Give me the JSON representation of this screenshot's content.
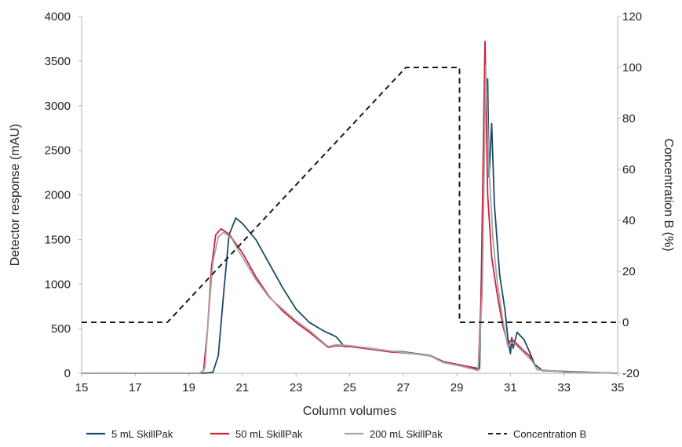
{
  "chart_data": {
    "type": "line",
    "xlabel": "Column volumes",
    "ylabel": "Detector response (mAU)",
    "y2label": "Concentration B (%)",
    "xlim": [
      15,
      35
    ],
    "ylim": [
      0,
      4000
    ],
    "y2lim": [
      -20,
      120
    ],
    "x_ticks": [
      "15",
      "17",
      "19",
      "21",
      "23",
      "25",
      "27",
      "29",
      "31",
      "33",
      "35"
    ],
    "y_ticks": [
      "0",
      "500",
      "1000",
      "1500",
      "2000",
      "2500",
      "3000",
      "3500",
      "4000"
    ],
    "y2_ticks": [
      "-20",
      "0",
      "20",
      "40",
      "60",
      "80",
      "100",
      "120"
    ],
    "grid": false,
    "legend_position": "bottom",
    "series": [
      {
        "name": "5 mL SkillPak",
        "color": "#1b4a66",
        "axis": "left",
        "dash": "solid",
        "points": [
          [
            15,
            0
          ],
          [
            19.5,
            0
          ],
          [
            19.9,
            10
          ],
          [
            20.1,
            200
          ],
          [
            20.3,
            900
          ],
          [
            20.5,
            1550
          ],
          [
            20.75,
            1740
          ],
          [
            21,
            1680
          ],
          [
            21.5,
            1500
          ],
          [
            22,
            1230
          ],
          [
            22.5,
            960
          ],
          [
            23,
            720
          ],
          [
            23.5,
            570
          ],
          [
            24,
            480
          ],
          [
            24.5,
            410
          ],
          [
            24.8,
            300
          ],
          [
            25,
            300
          ],
          [
            25.5,
            290
          ],
          [
            26,
            270
          ],
          [
            26.5,
            250
          ],
          [
            27,
            240
          ],
          [
            27.5,
            220
          ],
          [
            28,
            200
          ],
          [
            28.5,
            130
          ],
          [
            29,
            100
          ],
          [
            29.5,
            70
          ],
          [
            29.85,
            50
          ],
          [
            30.05,
            3000
          ],
          [
            30.15,
            3300
          ],
          [
            30.2,
            2200
          ],
          [
            30.3,
            2800
          ],
          [
            30.4,
            1900
          ],
          [
            30.6,
            1100
          ],
          [
            30.8,
            700
          ],
          [
            30.9,
            400
          ],
          [
            31,
            220
          ],
          [
            31.05,
            400
          ],
          [
            31.1,
            280
          ],
          [
            31.25,
            460
          ],
          [
            31.5,
            380
          ],
          [
            31.7,
            250
          ],
          [
            31.9,
            100
          ],
          [
            32.2,
            30
          ],
          [
            33,
            20
          ],
          [
            35,
            0
          ]
        ]
      },
      {
        "name": "50 mL SkillPak",
        "color": "#d01f3c",
        "axis": "left",
        "dash": "solid",
        "points": [
          [
            15,
            0
          ],
          [
            19.4,
            0
          ],
          [
            19.55,
            30
          ],
          [
            19.7,
            500
          ],
          [
            19.85,
            1200
          ],
          [
            20,
            1550
          ],
          [
            20.2,
            1620
          ],
          [
            20.5,
            1560
          ],
          [
            21,
            1350
          ],
          [
            21.5,
            1080
          ],
          [
            22,
            860
          ],
          [
            22.5,
            700
          ],
          [
            23,
            570
          ],
          [
            23.5,
            460
          ],
          [
            24,
            340
          ],
          [
            24.2,
            290
          ],
          [
            24.5,
            310
          ],
          [
            25,
            300
          ],
          [
            25.5,
            280
          ],
          [
            26,
            260
          ],
          [
            26.5,
            240
          ],
          [
            27,
            230
          ],
          [
            27.5,
            215
          ],
          [
            28,
            195
          ],
          [
            28.5,
            130
          ],
          [
            29,
            100
          ],
          [
            29.5,
            70
          ],
          [
            29.8,
            40
          ],
          [
            29.9,
            800
          ],
          [
            30.05,
            3720
          ],
          [
            30.15,
            2000
          ],
          [
            30.3,
            1300
          ],
          [
            30.5,
            900
          ],
          [
            30.7,
            550
          ],
          [
            30.9,
            330
          ],
          [
            31.05,
            380
          ],
          [
            31.2,
            340
          ],
          [
            31.5,
            250
          ],
          [
            31.7,
            200
          ],
          [
            32,
            40
          ],
          [
            33,
            15
          ],
          [
            35,
            0
          ]
        ]
      },
      {
        "name": "200 mL SkillPak",
        "color": "#a6a6a6",
        "axis": "left",
        "dash": "solid",
        "points": [
          [
            15,
            0
          ],
          [
            19.45,
            0
          ],
          [
            19.6,
            60
          ],
          [
            19.75,
            700
          ],
          [
            19.9,
            1250
          ],
          [
            20.1,
            1530
          ],
          [
            20.3,
            1580
          ],
          [
            20.6,
            1510
          ],
          [
            21,
            1300
          ],
          [
            21.5,
            1050
          ],
          [
            22,
            850
          ],
          [
            22.5,
            720
          ],
          [
            23,
            590
          ],
          [
            23.5,
            480
          ],
          [
            24,
            350
          ],
          [
            24.2,
            300
          ],
          [
            24.5,
            320
          ],
          [
            25,
            310
          ],
          [
            25.5,
            290
          ],
          [
            26,
            270
          ],
          [
            26.5,
            250
          ],
          [
            27,
            235
          ],
          [
            27.5,
            215
          ],
          [
            28,
            195
          ],
          [
            28.5,
            120
          ],
          [
            29,
            90
          ],
          [
            29.5,
            55
          ],
          [
            29.8,
            30
          ],
          [
            29.95,
            900
          ],
          [
            30.08,
            3450
          ],
          [
            30.2,
            2300
          ],
          [
            30.35,
            1500
          ],
          [
            30.5,
            1050
          ],
          [
            30.7,
            620
          ],
          [
            30.9,
            300
          ],
          [
            31.05,
            350
          ],
          [
            31.2,
            320
          ],
          [
            31.5,
            230
          ],
          [
            31.8,
            140
          ],
          [
            32,
            40
          ],
          [
            33,
            15
          ],
          [
            35,
            0
          ]
        ]
      },
      {
        "name": "Concentration B",
        "color": "#1a1a1a",
        "axis": "right",
        "dash": "dashed",
        "points": [
          [
            15,
            0
          ],
          [
            18.2,
            0
          ],
          [
            27.1,
            100
          ],
          [
            29.1,
            100
          ],
          [
            29.1,
            0
          ],
          [
            35,
            0
          ]
        ]
      }
    ]
  }
}
